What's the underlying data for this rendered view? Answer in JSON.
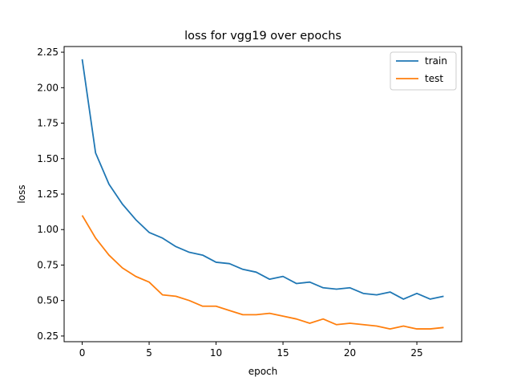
{
  "chart_data": {
    "type": "line",
    "title": "loss for vgg19 over epochs",
    "xlabel": "epoch",
    "ylabel": "loss",
    "xlim": [
      -1.35,
      28.35
    ],
    "ylim": [
      0.21,
      2.29
    ],
    "xticks": [
      0,
      5,
      10,
      15,
      20,
      25
    ],
    "xtick_labels": [
      "0",
      "5",
      "10",
      "15",
      "20",
      "25"
    ],
    "yticks": [
      0.25,
      0.5,
      0.75,
      1.0,
      1.25,
      1.5,
      1.75,
      2.0,
      2.25
    ],
    "ytick_labels": [
      "0.25",
      "0.50",
      "0.75",
      "1.00",
      "1.25",
      "1.50",
      "1.75",
      "2.00",
      "2.25"
    ],
    "grid": false,
    "legend_position": "top-right",
    "x": [
      0,
      1,
      2,
      3,
      4,
      5,
      6,
      7,
      8,
      9,
      10,
      11,
      12,
      13,
      14,
      15,
      16,
      17,
      18,
      19,
      20,
      21,
      22,
      23,
      24,
      25,
      26,
      27
    ],
    "series": [
      {
        "name": "train",
        "color": "#1f77b4",
        "values": [
          2.2,
          1.54,
          1.32,
          1.18,
          1.07,
          0.98,
          0.94,
          0.88,
          0.84,
          0.82,
          0.77,
          0.76,
          0.72,
          0.7,
          0.65,
          0.67,
          0.62,
          0.63,
          0.59,
          0.58,
          0.59,
          0.55,
          0.54,
          0.56,
          0.51,
          0.55,
          0.51,
          0.53
        ]
      },
      {
        "name": "test",
        "color": "#ff7f0e",
        "values": [
          1.1,
          0.94,
          0.82,
          0.73,
          0.67,
          0.63,
          0.54,
          0.53,
          0.5,
          0.46,
          0.46,
          0.43,
          0.4,
          0.4,
          0.41,
          0.39,
          0.37,
          0.34,
          0.37,
          0.33,
          0.34,
          0.33,
          0.32,
          0.3,
          0.32,
          0.3,
          0.3,
          0.31
        ]
      }
    ]
  }
}
